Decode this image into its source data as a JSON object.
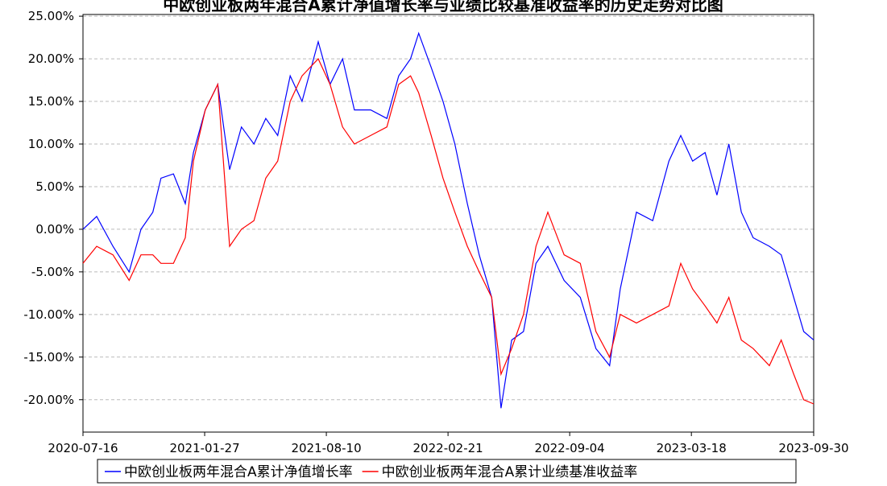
{
  "chart_data": {
    "type": "line",
    "title": "中欧创业板两年混合A累计净值增长率与业绩比较基准收益率的历史走势对比图",
    "x": [
      "2020-07-16",
      "2020-08-07",
      "2020-09-02",
      "2020-09-28",
      "2020-10-17",
      "2020-11-05",
      "2020-11-18",
      "2020-12-08",
      "2020-12-27",
      "2021-01-09",
      "2021-01-28",
      "2021-02-17",
      "2021-03-08",
      "2021-03-27",
      "2021-04-16",
      "2021-05-05",
      "2021-05-24",
      "2021-06-13",
      "2021-07-02",
      "2021-07-28",
      "2021-08-16",
      "2021-09-05",
      "2021-09-24",
      "2021-10-20",
      "2021-11-15",
      "2021-12-04",
      "2021-12-23",
      "2022-01-05",
      "2022-01-25",
      "2022-02-13",
      "2022-03-04",
      "2022-03-24",
      "2022-04-12",
      "2022-05-02",
      "2022-05-17",
      "2022-06-03",
      "2022-06-22",
      "2022-07-12",
      "2022-07-31",
      "2022-08-26",
      "2022-09-21",
      "2022-10-16",
      "2022-11-07",
      "2022-11-24",
      "2022-12-20",
      "2023-01-15",
      "2023-02-10",
      "2023-03-01",
      "2023-03-20",
      "2023-04-09",
      "2023-04-28",
      "2023-05-17",
      "2023-06-06",
      "2023-06-25",
      "2023-07-21",
      "2023-08-09",
      "2023-08-29",
      "2023-09-14",
      "2023-09-30"
    ],
    "series": [
      {
        "name": "中欧创业板两年混合A累计净值增长率",
        "color": "#0000ff",
        "values": [
          0,
          1.5,
          -2,
          -5,
          0,
          2,
          6,
          6.5,
          3,
          9,
          14,
          17,
          7,
          12,
          10,
          13,
          11,
          18,
          15,
          22,
          17,
          20,
          14,
          14,
          13,
          18,
          20,
          23,
          19,
          15,
          10,
          3,
          -3,
          -8,
          -21,
          -13,
          -12,
          -4,
          -2,
          -6,
          -8,
          -14,
          -16,
          -7,
          2,
          1,
          8,
          11,
          8,
          9,
          4,
          10,
          2,
          -1,
          -2,
          -3,
          -8,
          -12,
          -13
        ]
      },
      {
        "name": "中欧创业板两年混合A累计业绩基准收益率",
        "color": "#ff0000",
        "values": [
          -4,
          -2,
          -3,
          -6,
          -3,
          -3,
          -4,
          -4,
          -1,
          8,
          14,
          17,
          -2,
          0,
          1,
          6,
          8,
          15,
          18,
          20,
          17,
          12,
          10,
          11,
          12,
          17,
          18,
          16,
          11,
          6,
          2,
          -2,
          -5,
          -8,
          -17,
          -14,
          -10,
          -2,
          2,
          -3,
          -4,
          -12,
          -15,
          -10,
          -11,
          -10,
          -9,
          -4,
          -7,
          -9,
          -11,
          -8,
          -13,
          -14,
          -16,
          -13,
          -17,
          -20,
          -20.5
        ]
      }
    ],
    "xlim": [
      "2020-07-16",
      "2023-09-30"
    ],
    "xticks": [
      "2020-07-16",
      "2021-01-27",
      "2021-08-10",
      "2022-02-21",
      "2022-09-04",
      "2023-03-18",
      "2023-09-30"
    ],
    "ylim": [
      -23.8,
      25.2
    ],
    "yticks": [
      {
        "value": 25,
        "label": "25.00%"
      },
      {
        "value": 20,
        "label": "20.00%"
      },
      {
        "value": 15,
        "label": "15.00%"
      },
      {
        "value": 10,
        "label": "10.00%"
      },
      {
        "value": 5,
        "label": "5.00%"
      },
      {
        "value": 0,
        "label": "0.00%"
      },
      {
        "value": -5,
        "label": "-5.00%"
      },
      {
        "value": -10,
        "label": "-10.00%"
      },
      {
        "value": -15,
        "label": "-15.00%"
      },
      {
        "value": -20,
        "label": "-20.00%"
      }
    ],
    "grid": true,
    "legend": "bottom"
  }
}
